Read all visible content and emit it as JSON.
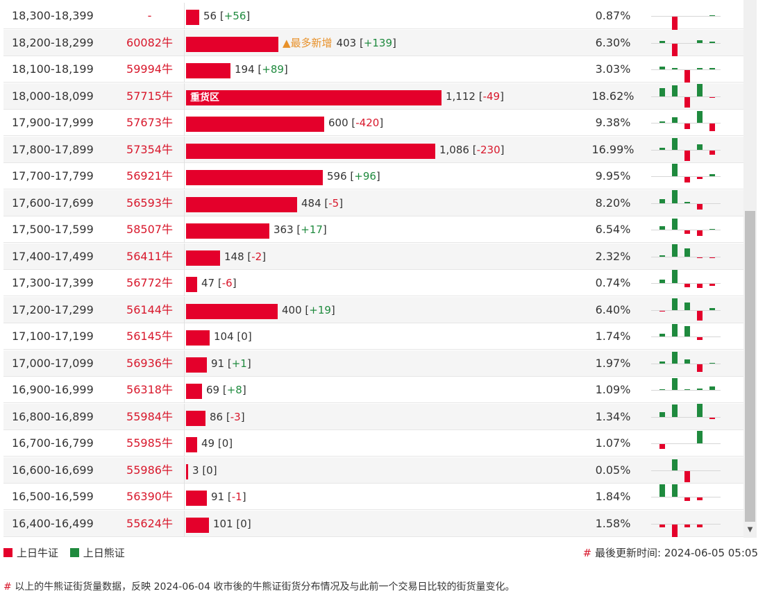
{
  "colors": {
    "bull": "#e4002b",
    "bear": "#1f8a3e",
    "code_text": "#d8172b",
    "badge": "#e8912a"
  },
  "rows": [
    {
      "range": "18,300-18,399",
      "code": "-",
      "value": 56,
      "change": "+56",
      "pct": "0.87%",
      "tag": null,
      "spark": [
        0,
        0,
        -20,
        0,
        0,
        0,
        0,
        0,
        1
      ]
    },
    {
      "range": "18,200-18,299",
      "code": "60082牛",
      "value": 403,
      "change": "+139",
      "pct": "6.30%",
      "tag": "▲最多新增",
      "spark": [
        0,
        3,
        -18,
        0,
        0,
        0,
        0,
        4,
        2
      ]
    },
    {
      "range": "18,100-18,199",
      "code": "59994牛",
      "value": 194,
      "change": "+89",
      "pct": "3.03%",
      "tag": null,
      "spark": [
        0,
        4,
        2,
        0,
        -18,
        0,
        0,
        2,
        2
      ]
    },
    {
      "range": "18,000-18,099",
      "code": "57715牛",
      "value": 1112,
      "change": "-49",
      "pct": "18.62%",
      "tag": "重货区",
      "spark": [
        0,
        12,
        16,
        0,
        -15,
        0,
        0,
        18,
        -1
      ]
    },
    {
      "range": "17,900-17,999",
      "code": "57673牛",
      "value": 600,
      "change": "-420",
      "pct": "9.38%",
      "tag": null,
      "spark": [
        0,
        2,
        8,
        0,
        -8,
        0,
        0,
        17,
        -11
      ]
    },
    {
      "range": "17,800-17,899",
      "code": "57354牛",
      "value": 1086,
      "change": "-230",
      "pct": "16.99%",
      "tag": null,
      "spark": [
        0,
        3,
        17,
        0,
        -15,
        0,
        0,
        8,
        -6
      ]
    },
    {
      "range": "17,700-17,799",
      "code": "56921牛",
      "value": 596,
      "change": "+96",
      "pct": "9.95%",
      "tag": null,
      "spark": [
        0,
        0,
        18,
        0,
        -8,
        -3,
        0,
        0,
        3
      ]
    },
    {
      "range": "17,600-17,699",
      "code": "56593牛",
      "value": 484,
      "change": "-5",
      "pct": "8.20%",
      "tag": null,
      "spark": [
        0,
        6,
        19,
        0,
        2,
        0,
        0,
        -8,
        0
      ]
    },
    {
      "range": "17,500-17,599",
      "code": "58507牛",
      "value": 363,
      "change": "+17",
      "pct": "6.54%",
      "tag": null,
      "spark": [
        0,
        5,
        16,
        0,
        -5,
        -8,
        0,
        0,
        1
      ]
    },
    {
      "range": "17,400-17,499",
      "code": "56411牛",
      "value": 148,
      "change": "-2",
      "pct": "2.32%",
      "tag": null,
      "spark": [
        0,
        2,
        18,
        0,
        12,
        0,
        0,
        -1,
        -1
      ]
    },
    {
      "range": "17,300-17,399",
      "code": "56772牛",
      "value": 47,
      "change": "-6",
      "pct": "0.74%",
      "tag": null,
      "spark": [
        0,
        5,
        19,
        0,
        -5,
        -6,
        0,
        -6,
        -3
      ]
    },
    {
      "range": "17,200-17,299",
      "code": "56144牛",
      "value": 400,
      "change": "+19",
      "pct": "6.40%",
      "tag": null,
      "spark": [
        0,
        -1,
        17,
        0,
        11,
        -14,
        0,
        0,
        3
      ]
    },
    {
      "range": "17,100-17,199",
      "code": "56145牛",
      "value": 104,
      "change": "0",
      "pct": "1.74%",
      "tag": null,
      "spark": [
        0,
        4,
        18,
        0,
        15,
        -4,
        0,
        0,
        0
      ]
    },
    {
      "range": "17,000-17,099",
      "code": "56936牛",
      "value": 91,
      "change": "+1",
      "pct": "1.97%",
      "tag": null,
      "spark": [
        0,
        3,
        17,
        0,
        6,
        -11,
        0,
        0,
        1
      ]
    },
    {
      "range": "16,900-16,999",
      "code": "56318牛",
      "value": 69,
      "change": "+8",
      "pct": "1.09%",
      "tag": null,
      "spark": [
        0,
        1,
        17,
        0,
        1,
        2,
        0,
        0,
        5
      ]
    },
    {
      "range": "16,800-16,899",
      "code": "55984牛",
      "value": 86,
      "change": "-3",
      "pct": "1.34%",
      "tag": null,
      "spark": [
        0,
        7,
        18,
        0,
        0,
        19,
        0,
        0,
        -2
      ]
    },
    {
      "range": "16,700-16,799",
      "code": "55985牛",
      "value": 49,
      "change": "0",
      "pct": "1.07%",
      "tag": null,
      "spark": [
        0,
        -7,
        0,
        0,
        0,
        18,
        0,
        0,
        0
      ]
    },
    {
      "range": "16,600-16,699",
      "code": "55986牛",
      "value": 3,
      "change": "0",
      "pct": "0.05%",
      "tag": null,
      "spark": [
        0,
        0,
        16,
        0,
        -16,
        0,
        0,
        0,
        0
      ]
    },
    {
      "range": "16,500-16,599",
      "code": "56390牛",
      "value": 91,
      "change": "-1",
      "pct": "1.84%",
      "tag": null,
      "spark": [
        0,
        18,
        18,
        0,
        -5,
        -4,
        0,
        0,
        0
      ]
    },
    {
      "range": "16,400-16,499",
      "code": "55624牛",
      "value": 101,
      "change": "0",
      "pct": "1.58%",
      "tag": null,
      "spark": [
        0,
        -4,
        -18,
        0,
        -4,
        -4,
        0,
        0,
        0
      ]
    }
  ],
  "legend": {
    "bull_label": "上日牛证",
    "bear_label": "上日熊证"
  },
  "update": {
    "hash": "#",
    "label": "最後更新时间: 2024-06-05 05:05"
  },
  "footnote": {
    "hash": "#",
    "text": "以上的牛熊证街货量数据，反映 2024-06-04 收市後的牛熊证街货分布情况及与此前一个交易日比较的街货量变化。"
  },
  "scrollbar": {
    "down_arrow": "▼"
  }
}
